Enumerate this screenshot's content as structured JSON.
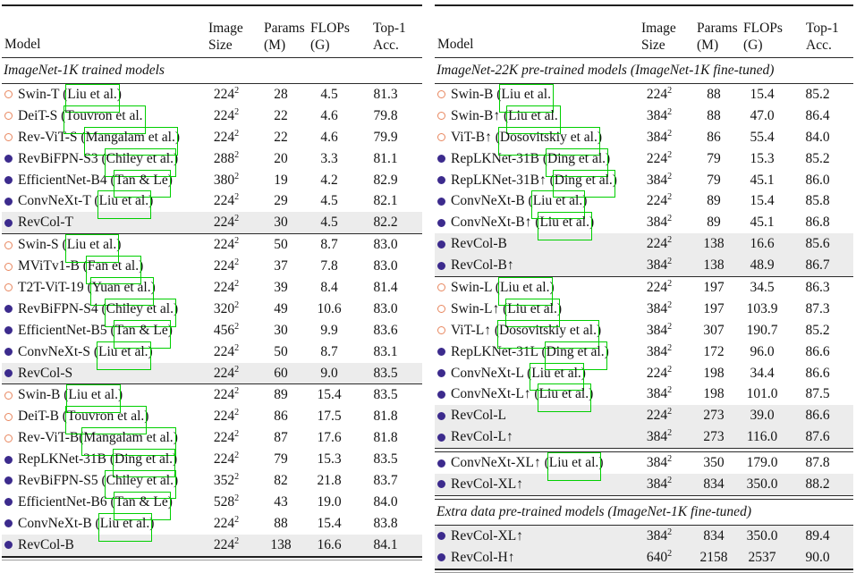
{
  "colors": {
    "text": "#141414",
    "open_bullet": "#e8875f",
    "filled_bullet": "#3c2b8d",
    "highlight_row": "#ececec",
    "citation_link_box": "#00cf00",
    "rule": "#2b2b2b"
  },
  "header": {
    "model": "Model",
    "size_l1": "Image",
    "size_l2": "Size",
    "params_l1": "Params",
    "params_l2": "(M)",
    "flops_l1": "FLOPs",
    "flops_l2": "(G)",
    "acc_l1": "Top-1",
    "acc_l2": "Acc."
  },
  "tables": {
    "left": {
      "groups": [
        {
          "label": "ImageNet-1K trained models",
          "divider_after": "single",
          "rows": [
            {
              "bullet": "open",
              "pre": "Swin-T (",
              "cite": "Liu et al.",
              "post": ")",
              "size": "224",
              "sup": "2",
              "params": "28",
              "flops": "4.5",
              "acc": "81.3",
              "highlight": false
            },
            {
              "bullet": "open",
              "pre": "DeiT-S (",
              "cite": "Touvron et al.",
              "post": "",
              "size": "224",
              "sup": "2",
              "params": "22",
              "flops": "4.6",
              "acc": "79.8",
              "highlight": false
            },
            {
              "bullet": "open",
              "pre": "Rev-ViT-S (",
              "cite": "Mangalam et al.",
              "post": ")",
              "size": "224",
              "sup": "2",
              "params": "22",
              "flops": "4.6",
              "acc": "79.9",
              "highlight": false
            },
            {
              "bullet": "filled",
              "pre": "RevBiFPN-S3 (",
              "cite": "Chiley et al.",
              "post": ")",
              "size": "288",
              "sup": "2",
              "params": "20",
              "flops": "3.3",
              "acc": "81.1",
              "highlight": false
            },
            {
              "bullet": "filled",
              "pre": "EfficientNet-B4 (",
              "cite": "Tan & Le",
              "post": ")",
              "size": "380",
              "sup": "2",
              "params": "19",
              "flops": "4.2",
              "acc": "82.9",
              "highlight": false
            },
            {
              "bullet": "filled",
              "pre": "ConvNeXt-T (",
              "cite": "Liu et al.",
              "post": ")",
              "size": "224",
              "sup": "2",
              "params": "29",
              "flops": "4.5",
              "acc": "82.1",
              "highlight": false
            },
            {
              "bullet": "filled",
              "pre": "RevCol-T",
              "cite": "",
              "post": "",
              "size": "224",
              "sup": "2",
              "params": "30",
              "flops": "4.5",
              "acc": "82.2",
              "highlight": true
            }
          ]
        },
        {
          "divider_after": "single",
          "rows": [
            {
              "bullet": "open",
              "pre": "Swin-S (",
              "cite": "Liu et al.",
              "post": ")",
              "size": "224",
              "sup": "2",
              "params": "50",
              "flops": "8.7",
              "acc": "83.0",
              "highlight": false
            },
            {
              "bullet": "open",
              "pre": "MViTv1-B (",
              "cite": "Fan et al.",
              "post": ")",
              "size": "224",
              "sup": "2",
              "params": "37",
              "flops": "7.8",
              "acc": "83.0",
              "highlight": false
            },
            {
              "bullet": "open",
              "pre": "T2T-ViT-19 (",
              "cite": "Yuan et al.",
              "post": ")",
              "size": "224",
              "sup": "2",
              "params": "39",
              "flops": "8.4",
              "acc": "81.4",
              "highlight": false
            },
            {
              "bullet": "filled",
              "pre": "RevBiFPN-S4 (",
              "cite": "Chiley et al.",
              "post": ")",
              "size": "320",
              "sup": "2",
              "params": "49",
              "flops": "10.6",
              "acc": "83.0",
              "highlight": false
            },
            {
              "bullet": "filled",
              "pre": "EfficientNet-B5 (",
              "cite": "Tan & Le",
              "post": ")",
              "size": "456",
              "sup": "2",
              "params": "30",
              "flops": "9.9",
              "acc": "83.6",
              "highlight": false
            },
            {
              "bullet": "filled",
              "pre": "ConvNeXt-S (",
              "cite": "Liu et al.",
              "post": ")",
              "size": "224",
              "sup": "2",
              "params": "50",
              "flops": "8.7",
              "acc": "83.1",
              "highlight": false
            },
            {
              "bullet": "filled",
              "pre": "RevCol-S",
              "cite": "",
              "post": "",
              "size": "224",
              "sup": "2",
              "params": "60",
              "flops": "9.0",
              "acc": "83.5",
              "highlight": true
            }
          ]
        },
        {
          "divider_after": "none",
          "rows": [
            {
              "bullet": "open",
              "pre": "Swin-B (",
              "cite": "Liu et al.",
              "post": ")",
              "size": "224",
              "sup": "2",
              "params": "89",
              "flops": "15.4",
              "acc": "83.5",
              "highlight": false
            },
            {
              "bullet": "open",
              "pre": "DeiT-B (",
              "cite": "Touvron et al.",
              "post": ")",
              "size": "224",
              "sup": "2",
              "params": "86",
              "flops": "17.5",
              "acc": "81.8",
              "highlight": false
            },
            {
              "bullet": "open",
              "pre": "Rev-ViT-B(",
              "cite": "Mangalam et al.",
              "post": ")",
              "size": "224",
              "sup": "2",
              "params": "87",
              "flops": "17.6",
              "acc": "81.8",
              "highlight": false
            },
            {
              "bullet": "filled",
              "pre": "RepLKNet-31B (",
              "cite": "Ding et al.",
              "post": ")",
              "size": "224",
              "sup": "2",
              "params": "79",
              "flops": "15.3",
              "acc": "83.5",
              "highlight": false
            },
            {
              "bullet": "filled",
              "pre": "RevBiFPN-S5 (",
              "cite": "Chiley et al.",
              "post": ")",
              "size": "352",
              "sup": "2",
              "params": "82",
              "flops": "21.8",
              "acc": "83.7",
              "highlight": false
            },
            {
              "bullet": "filled",
              "pre": "EfficientNet-B6 (",
              "cite": "Tan & Le",
              "post": ")",
              "size": "528",
              "sup": "2",
              "params": "43",
              "flops": "19.0",
              "acc": "84.0",
              "highlight": false
            },
            {
              "bullet": "filled",
              "pre": "ConvNeXt-B (",
              "cite": "Liu et al.",
              "post": ")",
              "size": "224",
              "sup": "2",
              "params": "88",
              "flops": "15.4",
              "acc": "83.8",
              "highlight": false
            },
            {
              "bullet": "filled",
              "pre": "RevCol-B",
              "cite": "",
              "post": "",
              "size": "224",
              "sup": "2",
              "params": "138",
              "flops": "16.6",
              "acc": "84.1",
              "highlight": true
            }
          ]
        }
      ]
    },
    "right": {
      "groups": [
        {
          "label": "ImageNet-22K pre-trained models (ImageNet-1K fine-tuned)",
          "divider_after": "single",
          "rows": [
            {
              "bullet": "open",
              "pre": "Swin-B (",
              "cite": "Liu et al.",
              "post": "",
              "size": "224",
              "sup": "2",
              "params": "88",
              "flops": "15.4",
              "acc": "85.2",
              "highlight": false
            },
            {
              "bullet": "open",
              "pre": "Swin-B↑ (",
              "cite": "Liu et al.",
              "post": "",
              "size": "384",
              "sup": "2",
              "params": "88",
              "flops": "47.0",
              "acc": "86.4",
              "highlight": false
            },
            {
              "bullet": "open",
              "pre": "ViT-B↑ (",
              "cite": "Dosovitskiy et al.",
              "post": ")",
              "size": "384",
              "sup": "2",
              "params": "86",
              "flops": "55.4",
              "acc": "84.0",
              "highlight": false
            },
            {
              "bullet": "filled",
              "pre": "RepLKNet-31B (",
              "cite": "Ding et al.",
              "post": ")",
              "size": "224",
              "sup": "2",
              "params": "79",
              "flops": "15.3",
              "acc": "85.2",
              "highlight": false
            },
            {
              "bullet": "filled",
              "pre": "RepLKNet-31B↑ (",
              "cite": "Ding et al.",
              "post": ")",
              "size": "384",
              "sup": "2",
              "params": "79",
              "flops": "45.1",
              "acc": "86.0",
              "highlight": false
            },
            {
              "bullet": "filled",
              "pre": "ConvNeXt-B (",
              "cite": "Liu et al.",
              "post": ")",
              "size": "224",
              "sup": "2",
              "params": "89",
              "flops": "15.4",
              "acc": "85.8",
              "highlight": false
            },
            {
              "bullet": "filled",
              "pre": "ConvNeXt-B↑ (",
              "cite": "Liu et al.",
              "post": ")",
              "size": "384",
              "sup": "2",
              "params": "89",
              "flops": "45.1",
              "acc": "86.8",
              "highlight": false
            },
            {
              "bullet": "filled",
              "pre": "RevCol-B",
              "cite": "",
              "post": "",
              "size": "224",
              "sup": "2",
              "params": "138",
              "flops": "16.6",
              "acc": "85.6",
              "highlight": true
            },
            {
              "bullet": "filled",
              "pre": "RevCol-B↑",
              "cite": "",
              "post": "",
              "size": "384",
              "sup": "2",
              "params": "138",
              "flops": "48.9",
              "acc": "86.7",
              "highlight": true
            }
          ]
        },
        {
          "divider_after": "double",
          "rows": [
            {
              "bullet": "open",
              "pre": "Swin-L (",
              "cite": "Liu et al.",
              "post": ")",
              "size": "224",
              "sup": "2",
              "params": "197",
              "flops": "34.5",
              "acc": "86.3",
              "highlight": false
            },
            {
              "bullet": "open",
              "pre": "Swin-L↑ (",
              "cite": "Liu et al.",
              "post": ")",
              "size": "384",
              "sup": "2",
              "params": "197",
              "flops": "103.9",
              "acc": "87.3",
              "highlight": false
            },
            {
              "bullet": "open",
              "pre": "ViT-L↑ (",
              "cite": "Dosovitskiy et al.",
              "post": ")",
              "size": "384",
              "sup": "2",
              "params": "307",
              "flops": "190.7",
              "acc": "85.2",
              "highlight": false
            },
            {
              "bullet": "filled",
              "pre": "RepLKNet-31L (",
              "cite": "Ding et al.",
              "post": ")",
              "size": "384",
              "sup": "2",
              "params": "172",
              "flops": "96.0",
              "acc": "86.6",
              "highlight": false
            },
            {
              "bullet": "filled",
              "pre": "ConvNeXt-L (",
              "cite": "Liu et al.",
              "post": ")",
              "size": "224",
              "sup": "2",
              "params": "198",
              "flops": "34.4",
              "acc": "86.6",
              "highlight": false
            },
            {
              "bullet": "filled",
              "pre": "ConvNeXt-L↑ (",
              "cite": "Liu et al.",
              "post": ")",
              "size": "384",
              "sup": "2",
              "params": "198",
              "flops": "101.0",
              "acc": "87.5",
              "highlight": false
            },
            {
              "bullet": "filled",
              "pre": "RevCol-L",
              "cite": "",
              "post": "",
              "size": "224",
              "sup": "2",
              "params": "273",
              "flops": "39.0",
              "acc": "86.6",
              "highlight": true
            },
            {
              "bullet": "filled",
              "pre": "RevCol-L↑",
              "cite": "",
              "post": "",
              "size": "384",
              "sup": "2",
              "params": "273",
              "flops": "116.0",
              "acc": "87.6",
              "highlight": true
            }
          ]
        },
        {
          "divider_after": "double",
          "rows": [
            {
              "bullet": "filled",
              "pre": "ConvNeXt-XL↑ (",
              "cite": "Liu et al.",
              "post": ")",
              "size": "384",
              "sup": "2",
              "params": "350",
              "flops": "179.0",
              "acc": "87.8",
              "highlight": false
            },
            {
              "bullet": "filled",
              "pre": "RevCol-XL↑",
              "cite": "",
              "post": "",
              "size": "384",
              "sup": "2",
              "params": "834",
              "flops": "350.0",
              "acc": "88.2",
              "highlight": true
            }
          ]
        },
        {
          "label": "Extra data pre-trained models (ImageNet-1K fine-tuned)",
          "divider_after": "none",
          "rows": [
            {
              "bullet": "filled",
              "pre": "RevCol-XL↑",
              "cite": "",
              "post": "",
              "size": "384",
              "sup": "2",
              "params": "834",
              "flops": "350.0",
              "acc": "89.4",
              "highlight": true
            },
            {
              "bullet": "filled",
              "pre": "RevCol-H↑",
              "cite": "",
              "post": "",
              "size": "640",
              "sup": "2",
              "params": "2158",
              "flops": "2537",
              "acc": "90.0",
              "highlight": true
            }
          ]
        }
      ]
    }
  }
}
